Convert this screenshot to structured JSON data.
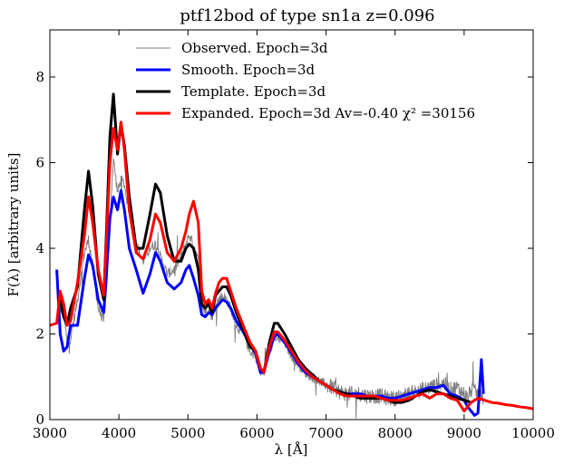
{
  "chart_data": {
    "type": "line",
    "title": "ptf12bod of type sn1a z=0.096",
    "xlabel": "λ [Å]",
    "ylabel": "F(λ) [arbitrary units]",
    "xlim": [
      3000,
      10000
    ],
    "ylim": [
      0,
      9.1
    ],
    "xticks": [
      3000,
      4000,
      5000,
      6000,
      7000,
      8000,
      9000,
      10000
    ],
    "yticks": [
      0,
      2,
      4,
      6,
      8
    ],
    "grid": false,
    "legend_position": "top-center",
    "series": [
      {
        "name": "Observed. Epoch=3d",
        "color": "#808080",
        "width": 1,
        "noise": true,
        "x": [
          3100,
          3150,
          3200,
          3250,
          3300,
          3400,
          3500,
          3560,
          3620,
          3700,
          3780,
          3820,
          3880,
          3920,
          3980,
          4030,
          4080,
          4150,
          4250,
          4350,
          4450,
          4530,
          4600,
          4700,
          4800,
          4900,
          4970,
          5020,
          5080,
          5150,
          5200,
          5250,
          5300,
          5350,
          5400,
          5450,
          5500,
          5560,
          5620,
          5700,
          5800,
          5900,
          5980,
          6050,
          6100,
          6180,
          6250,
          6300,
          6400,
          6500,
          6600,
          6700,
          6800,
          6900,
          7000,
          7100,
          7200,
          7300,
          7400,
          7500,
          7600,
          7700,
          7800,
          7900,
          8000,
          8100,
          8200,
          8300,
          8400,
          8500,
          8600,
          8700,
          8800,
          8900,
          9000,
          9050,
          9100,
          9200,
          9280
        ],
        "y": [
          3.4,
          2.6,
          2.5,
          1.8,
          1.9,
          2.8,
          3.9,
          4.2,
          3.6,
          2.6,
          2.3,
          3.0,
          5.0,
          6.1,
          5.3,
          5.6,
          5.5,
          4.8,
          4.1,
          3.7,
          4.0,
          4.1,
          3.8,
          3.4,
          3.5,
          3.8,
          4.1,
          4.3,
          4.1,
          3.7,
          2.7,
          2.5,
          2.6,
          2.4,
          2.7,
          2.8,
          2.9,
          2.8,
          2.6,
          2.2,
          2.0,
          1.6,
          1.5,
          1.1,
          1.1,
          1.6,
          1.9,
          1.9,
          1.8,
          1.5,
          1.3,
          1.1,
          1.0,
          0.9,
          0.8,
          0.75,
          0.65,
          0.6,
          0.6,
          0.6,
          0.55,
          0.55,
          0.55,
          0.5,
          0.5,
          0.55,
          0.6,
          0.65,
          0.7,
          0.75,
          0.8,
          0.85,
          0.7,
          0.75,
          0.6,
          0.5,
          0.7,
          0.6,
          0.5
        ]
      },
      {
        "name": "Smooth. Epoch=3d",
        "color": "#0000ff",
        "width": 3,
        "x": [
          3100,
          3150,
          3200,
          3250,
          3300,
          3400,
          3500,
          3560,
          3620,
          3700,
          3780,
          3820,
          3870,
          3920,
          3980,
          4030,
          4080,
          4150,
          4250,
          4350,
          4450,
          4530,
          4600,
          4700,
          4800,
          4900,
          4970,
          5020,
          5080,
          5150,
          5200,
          5250,
          5300,
          5350,
          5400,
          5450,
          5500,
          5560,
          5620,
          5700,
          5800,
          5900,
          5980,
          6050,
          6100,
          6180,
          6250,
          6300,
          6400,
          6500,
          6600,
          6700,
          6800,
          6900,
          7000,
          7100,
          7200,
          7300,
          7400,
          7500,
          7600,
          7700,
          7800,
          7900,
          8000,
          8100,
          8200,
          8300,
          8400,
          8500,
          8600,
          8700,
          8800,
          8900,
          9000,
          9050,
          9100,
          9150,
          9200,
          9250,
          9280
        ],
        "y": [
          3.5,
          2.0,
          1.6,
          1.7,
          2.2,
          2.2,
          3.3,
          3.85,
          3.6,
          2.8,
          2.5,
          3.4,
          4.7,
          5.2,
          4.9,
          5.35,
          4.9,
          4.0,
          3.5,
          2.95,
          3.4,
          3.9,
          3.7,
          3.2,
          3.05,
          3.2,
          3.5,
          3.6,
          3.3,
          2.9,
          2.45,
          2.4,
          2.5,
          2.45,
          2.6,
          2.7,
          2.8,
          2.75,
          2.6,
          2.3,
          2.05,
          1.75,
          1.55,
          1.1,
          1.1,
          1.6,
          1.95,
          2.0,
          1.8,
          1.55,
          1.3,
          1.1,
          1.0,
          0.9,
          0.8,
          0.7,
          0.65,
          0.6,
          0.6,
          0.6,
          0.55,
          0.55,
          0.55,
          0.5,
          0.5,
          0.55,
          0.6,
          0.65,
          0.7,
          0.75,
          0.75,
          0.8,
          0.6,
          0.55,
          0.45,
          0.3,
          0.2,
          0.1,
          0.15,
          1.4,
          0.6
        ]
      },
      {
        "name": "Template. Epoch=3d",
        "color": "#000000",
        "width": 3,
        "x": [
          3150,
          3200,
          3250,
          3300,
          3400,
          3500,
          3560,
          3620,
          3700,
          3780,
          3820,
          3870,
          3920,
          3980,
          4030,
          4080,
          4150,
          4250,
          4350,
          4450,
          4530,
          4600,
          4700,
          4800,
          4900,
          4970,
          5020,
          5080,
          5150,
          5200,
          5250,
          5300,
          5350,
          5400,
          5450,
          5500,
          5560,
          5620,
          5700,
          5800,
          5900,
          5980,
          6050,
          6100,
          6180,
          6250,
          6300,
          6400,
          6500,
          6600,
          6700,
          6800,
          6900,
          7000,
          7100,
          7200,
          7300,
          7400,
          7500,
          7600,
          7700,
          7800,
          7900,
          8000,
          8100,
          8200,
          8300,
          8400,
          8500,
          8600,
          8700,
          8800,
          8900,
          9000,
          9100,
          9200
        ],
        "y": [
          2.8,
          2.4,
          2.2,
          2.6,
          3.1,
          4.9,
          5.8,
          5.0,
          3.4,
          2.8,
          4.4,
          6.6,
          7.6,
          6.2,
          6.9,
          6.4,
          5.2,
          4.0,
          4.0,
          4.8,
          5.5,
          5.3,
          4.3,
          3.7,
          3.7,
          4.0,
          4.1,
          4.0,
          3.5,
          2.7,
          2.6,
          2.7,
          2.5,
          2.9,
          3.0,
          3.1,
          3.1,
          2.9,
          2.5,
          2.1,
          1.7,
          1.6,
          1.2,
          1.1,
          1.8,
          2.25,
          2.25,
          2.0,
          1.7,
          1.4,
          1.2,
          1.05,
          0.9,
          0.8,
          0.7,
          0.65,
          0.6,
          0.55,
          0.5,
          0.5,
          0.5,
          0.5,
          0.45,
          0.4,
          0.4,
          0.45,
          0.55,
          0.65,
          0.7,
          0.65,
          0.6,
          0.55,
          0.5,
          0.45,
          0.4,
          0.5
        ]
      },
      {
        "name": "Expanded. Epoch=3d Av=-0.40 χ² =30156",
        "color": "#ff0000",
        "width": 3,
        "x": [
          3000,
          3100,
          3150,
          3200,
          3250,
          3300,
          3400,
          3500,
          3560,
          3620,
          3700,
          3780,
          3820,
          3870,
          3920,
          3980,
          4030,
          4080,
          4150,
          4250,
          4350,
          4450,
          4530,
          4600,
          4700,
          4800,
          4900,
          4970,
          5020,
          5080,
          5150,
          5200,
          5250,
          5300,
          5350,
          5400,
          5450,
          5500,
          5560,
          5620,
          5700,
          5800,
          5900,
          5980,
          6050,
          6100,
          6180,
          6250,
          6300,
          6400,
          6500,
          6600,
          6700,
          6800,
          6900,
          7000,
          7100,
          7200,
          7300,
          7400,
          7500,
          7600,
          7700,
          7800,
          7900,
          8000,
          8100,
          8200,
          8300,
          8400,
          8500,
          8600,
          8700,
          8800,
          8900,
          9000,
          9100,
          9200,
          9300,
          9400,
          9500,
          9600,
          9700,
          9800,
          9900,
          10000
        ],
        "y": [
          2.2,
          2.25,
          3.0,
          2.7,
          2.2,
          2.3,
          3.2,
          4.3,
          5.2,
          4.6,
          3.5,
          2.9,
          4.2,
          6.0,
          6.8,
          6.3,
          6.95,
          6.3,
          4.9,
          3.9,
          3.75,
          4.2,
          4.8,
          4.6,
          3.9,
          3.7,
          4.0,
          4.4,
          4.8,
          5.1,
          4.6,
          3.0,
          2.7,
          2.8,
          2.6,
          2.95,
          3.2,
          3.3,
          3.3,
          3.0,
          2.6,
          2.2,
          1.8,
          1.6,
          1.2,
          1.1,
          1.7,
          2.05,
          2.05,
          1.85,
          1.6,
          1.35,
          1.15,
          1.0,
          0.9,
          0.8,
          0.7,
          0.6,
          0.55,
          0.55,
          0.55,
          0.55,
          0.55,
          0.5,
          0.45,
          0.45,
          0.45,
          0.5,
          0.55,
          0.6,
          0.5,
          0.6,
          0.6,
          0.5,
          0.45,
          0.2,
          0.4,
          0.5,
          0.45,
          0.4,
          0.38,
          0.35,
          0.33,
          0.3,
          0.28,
          0.25
        ]
      }
    ]
  }
}
